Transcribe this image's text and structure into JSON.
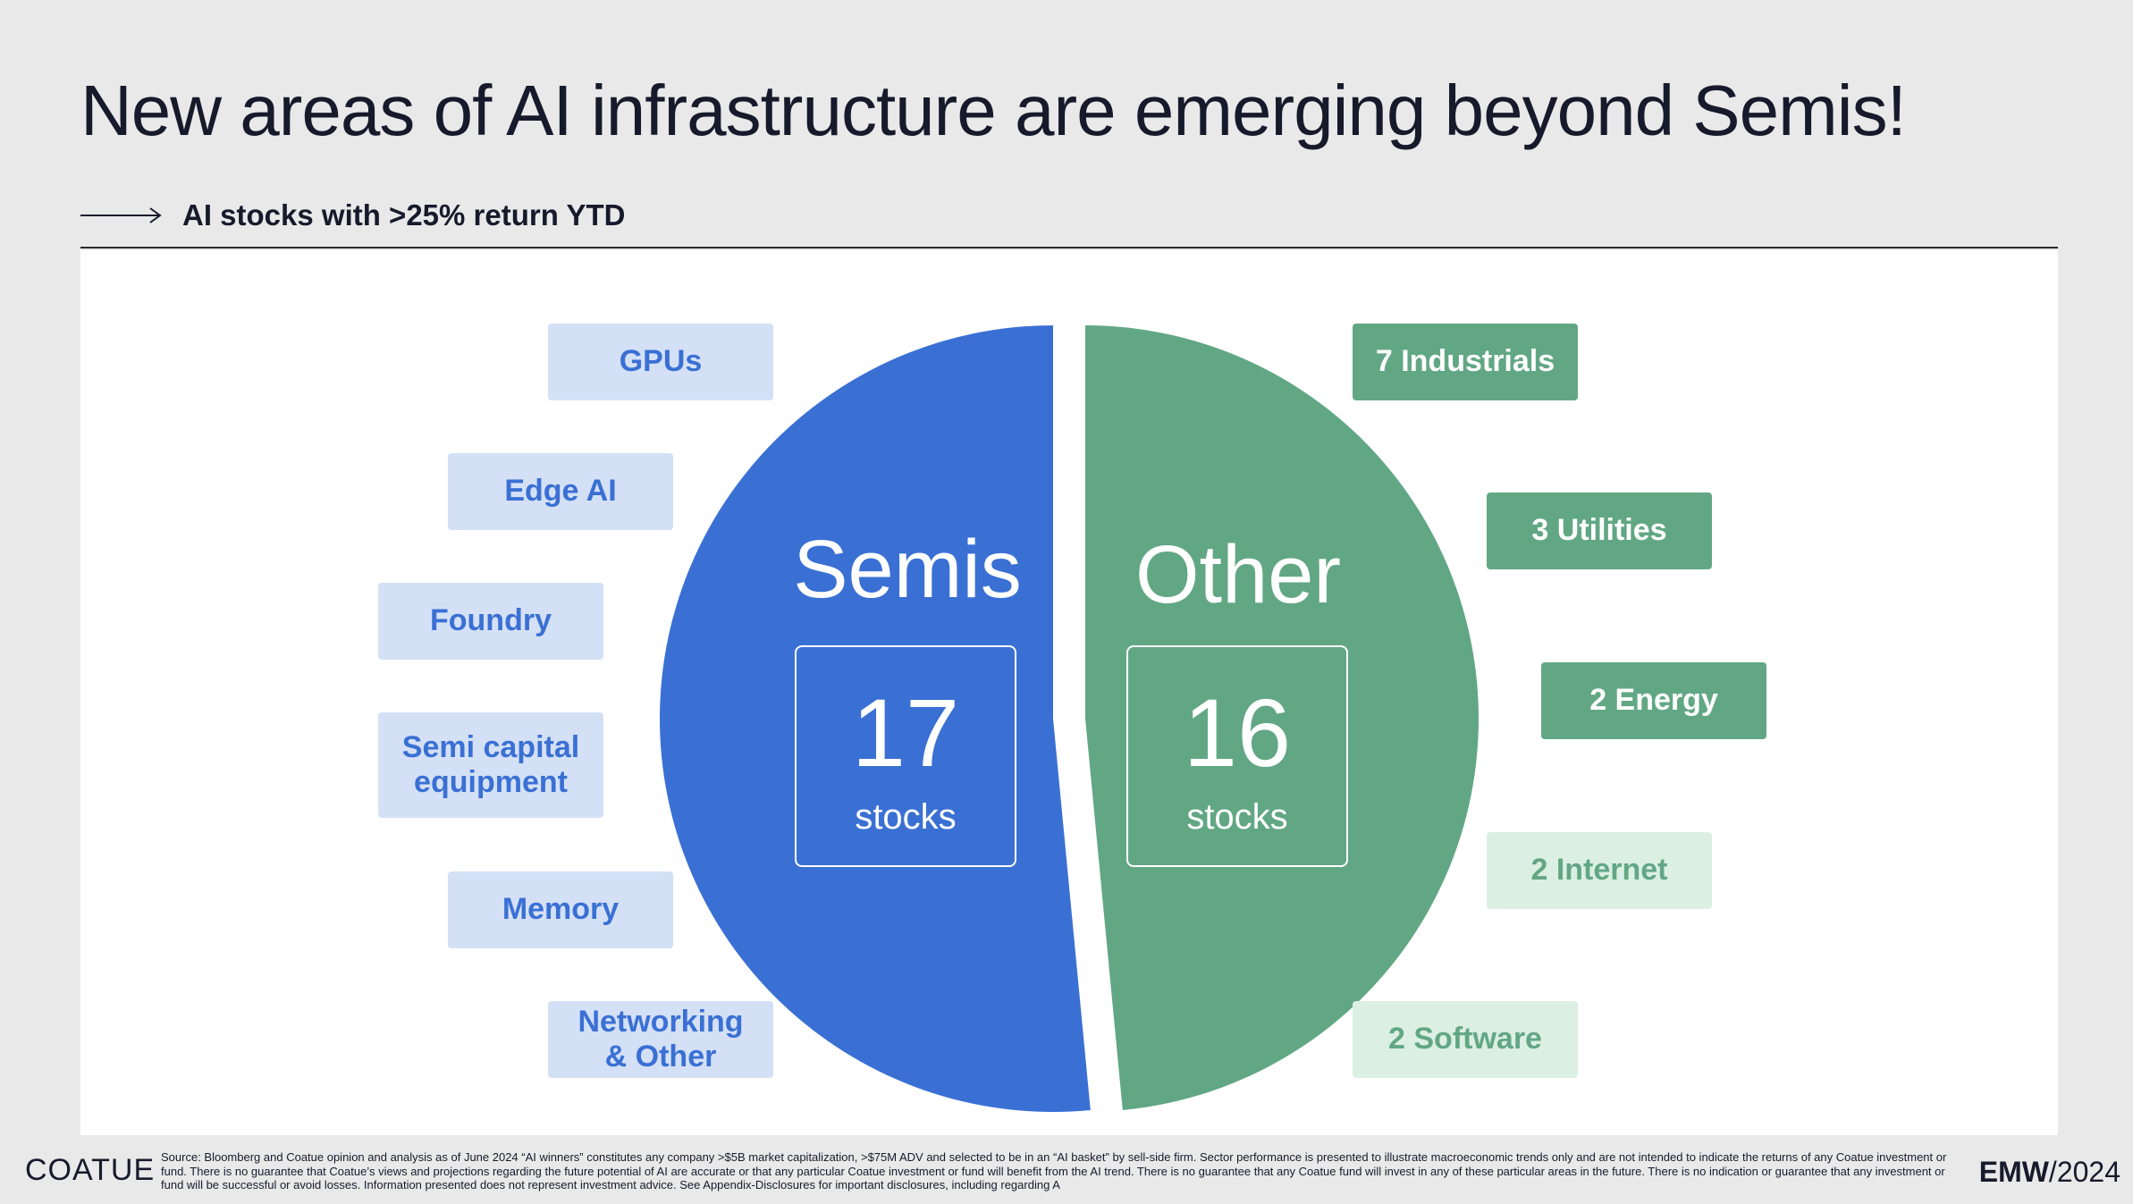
{
  "header": {
    "title": "New areas of AI infrastructure are emerging beyond Semis!",
    "subtitle": "AI stocks with >25% return YTD"
  },
  "colors": {
    "semis": "#3a70d4",
    "semis_light": "#d4e0f6",
    "other": "#62a784",
    "other_light": "#dcefe3"
  },
  "chart_data": {
    "type": "pie",
    "title": "AI stocks with >25% return YTD",
    "slices": [
      {
        "name": "Semis",
        "value": 17,
        "unit": "stocks",
        "exploded": true
      },
      {
        "name": "Other",
        "value": 16,
        "unit": "stocks",
        "exploded": true
      }
    ],
    "semis_categories": [
      "GPUs",
      "Edge AI",
      "Foundry",
      "Semi capital equipment",
      "Memory",
      "Networking & Other"
    ],
    "other_breakdown": [
      {
        "label": "7 Industrials",
        "count": 7
      },
      {
        "label": "3 Utilities",
        "count": 3
      },
      {
        "label": "2 Energy",
        "count": 2
      },
      {
        "label": "2 Internet",
        "count": 2
      },
      {
        "label": "2 Software",
        "count": 2
      }
    ]
  },
  "pie": {
    "semis_label": "Semis",
    "semis_count": "17",
    "semis_unit": "stocks",
    "other_label": "Other",
    "other_count": "16",
    "other_unit": "stocks"
  },
  "semis_tags": {
    "gpus": "GPUs",
    "edge_ai": "Edge AI",
    "foundry": "Foundry",
    "semi_capital_equipment": "Semi capital equipment",
    "memory": "Memory",
    "networking_other": "Networking & Other"
  },
  "other_tags": {
    "industrials": "7 Industrials",
    "utilities": "3 Utilities",
    "energy": "2 Energy",
    "internet": "2 Internet",
    "software": "2 Software"
  },
  "footer": {
    "logo": "COATUE",
    "note": "Source: Bloomberg and Coatue opinion and analysis as of June 2024 “AI winners” constitutes any company >$5B market capitalization, >$75M ADV and selected to be in an “AI basket” by sell-side firm. Sector performance is presented to illustrate macroeconomic trends only and are not intended to indicate the returns of any Coatue investment or fund.  There is no guarantee that Coatue’s views and projections regarding the future potential of AI are accurate or that any particular Coatue investment or fund will benefit from the AI trend. There is no guarantee that any Coatue fund will invest in any of these particular areas in the future. There is no indication or guarantee that any investment or fund will be successful or avoid losses. Information presented does not represent investment advice. See Appendix-Disclosures for important disclosures, including regarding A",
    "brand_bold": "EMW",
    "brand_rest": "/2024"
  }
}
